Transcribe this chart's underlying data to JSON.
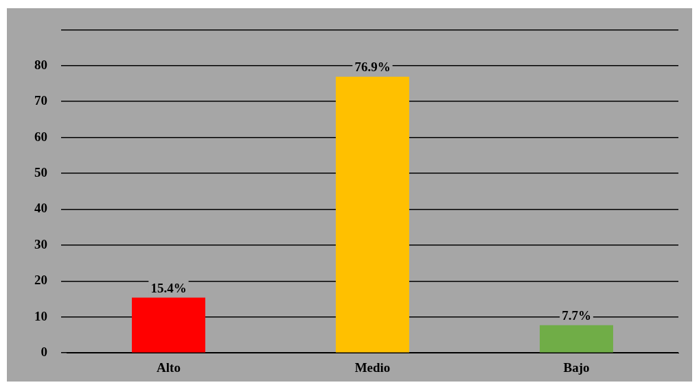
{
  "chart_data": {
    "type": "bar",
    "categories": [
      "Alto",
      "Medio",
      "Bajo"
    ],
    "values": [
      15.4,
      76.9,
      7.7
    ],
    "colors": [
      "#ff0000",
      "#ffc000",
      "#70ad47"
    ],
    "value_labels": [
      "15.4%",
      "76.9%",
      "7.7%"
    ],
    "ylim": [
      0,
      90
    ],
    "yticks": [
      0,
      10,
      20,
      30,
      40,
      50,
      60,
      70,
      80,
      {
        "value": 90,
        "label": null
      }
    ],
    "grid": "y",
    "legend": false
  }
}
